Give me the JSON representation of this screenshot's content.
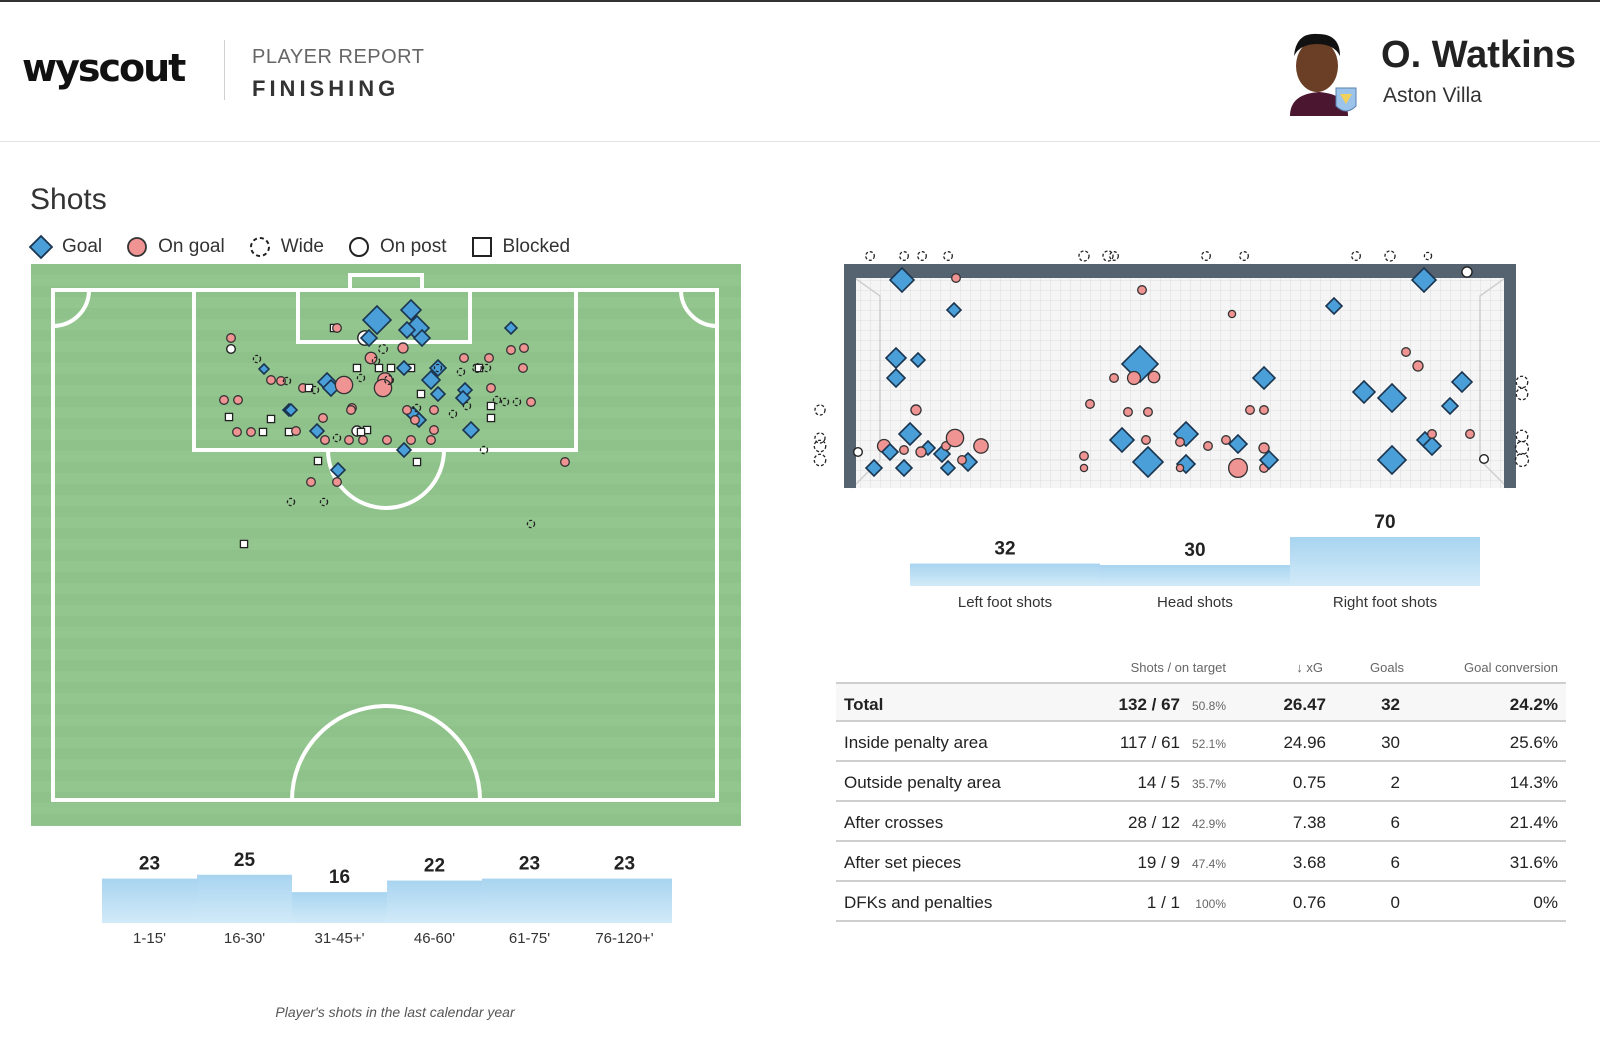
{
  "header": {
    "logo": "wyscout",
    "report_label": "PLAYER REPORT",
    "report_title": "FINISHING",
    "player_name": "O. Watkins",
    "team": "Aston Villa"
  },
  "section_title": "Shots",
  "legend": [
    {
      "label": "Goal",
      "icon": "diamond-icon"
    },
    {
      "label": "On goal",
      "icon": "circle-icon"
    },
    {
      "label": "Wide",
      "icon": "dashed-circle-icon"
    },
    {
      "label": "On post",
      "icon": "ring-icon"
    },
    {
      "label": "Blocked",
      "icon": "square-icon"
    }
  ],
  "colors": {
    "goal": "#4a9fd8",
    "on_goal": "#f09393",
    "pitch": "#8fc28a",
    "goal_frame": "#556270",
    "bar_top": "#a8d4f0",
    "bar_bottom": "#d2eaf8"
  },
  "foot_bars": {
    "chart_data": {
      "type": "bar",
      "categories": [
        "Left foot shots",
        "Head shots",
        "Right foot shots"
      ],
      "values": [
        32,
        30,
        70
      ]
    }
  },
  "time_bars": {
    "chart_data": {
      "type": "bar",
      "categories": [
        "1-15'",
        "16-30'",
        "31-45+'",
        "46-60'",
        "61-75'",
        "76-120+'"
      ],
      "values": [
        23,
        25,
        16,
        22,
        23,
        23
      ]
    }
  },
  "stats_table": {
    "columns": [
      "Shots / on target",
      "↓ xG",
      "Goals",
      "Goal conversion"
    ],
    "rows": [
      {
        "label": "Total",
        "shots": "132 / 67",
        "pct": "50.8%",
        "xg": "26.47",
        "goals": "32",
        "conversion": "24.2%"
      },
      {
        "label": "Inside penalty area",
        "shots": "117 / 61",
        "pct": "52.1%",
        "xg": "24.96",
        "goals": "30",
        "conversion": "25.6%"
      },
      {
        "label": "Outside penalty area",
        "shots": "14 / 5",
        "pct": "35.7%",
        "xg": "0.75",
        "goals": "2",
        "conversion": "14.3%"
      },
      {
        "label": "After crosses",
        "shots": "28 / 12",
        "pct": "42.9%",
        "xg": "7.38",
        "goals": "6",
        "conversion": "21.4%"
      },
      {
        "label": "After set pieces",
        "shots": "19 / 9",
        "pct": "47.4%",
        "xg": "3.68",
        "goals": "6",
        "conversion": "31.6%"
      },
      {
        "label": "DFKs and penalties",
        "shots": "1 / 1",
        "pct": "100%",
        "xg": "0.76",
        "goals": "0",
        "conversion": "0%"
      }
    ]
  },
  "footnote": "Player's shots in the last calendar year"
}
